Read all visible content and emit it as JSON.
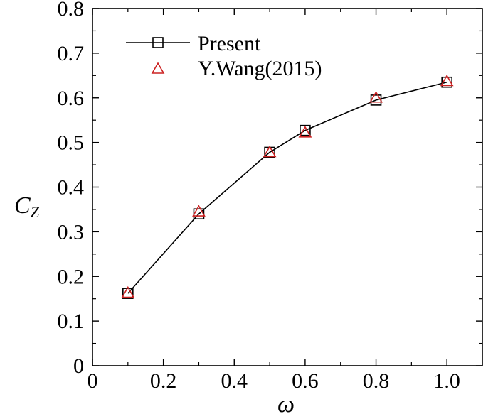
{
  "chart_data": {
    "type": "line",
    "xlabel": "ω",
    "ylabel": "C",
    "ylabel_sub": "Z",
    "xlim": [
      0,
      1.1
    ],
    "ylim": [
      0,
      0.8
    ],
    "xticks": [
      0,
      0.2,
      0.4,
      0.6,
      0.8,
      1.0
    ],
    "xtick_labels": [
      "0",
      "0.2",
      "0.4",
      "0.6",
      "0.8",
      "1.0"
    ],
    "yticks": [
      0,
      0.1,
      0.2,
      0.3,
      0.4,
      0.5,
      0.6,
      0.7,
      0.8
    ],
    "ytick_labels": [
      "0",
      "0.1",
      "0.2",
      "0.3",
      "0.4",
      "0.5",
      "0.6",
      "0.7",
      "0.8"
    ],
    "grid": false,
    "legend_position": "top-left",
    "series": [
      {
        "name": "Present",
        "marker": "square",
        "line": true,
        "color": "#000000",
        "x": [
          0.1,
          0.3,
          0.5,
          0.6,
          0.8,
          1.0
        ],
        "y": [
          0.162,
          0.34,
          0.478,
          0.527,
          0.595,
          0.635
        ]
      },
      {
        "name": "Y.Wang(2015)",
        "marker": "triangle",
        "line": false,
        "color": "#cc2222",
        "x": [
          0.1,
          0.3,
          0.5,
          0.6,
          0.8,
          1.0
        ],
        "y": [
          0.163,
          0.345,
          0.478,
          0.522,
          0.6,
          0.637
        ]
      }
    ]
  }
}
